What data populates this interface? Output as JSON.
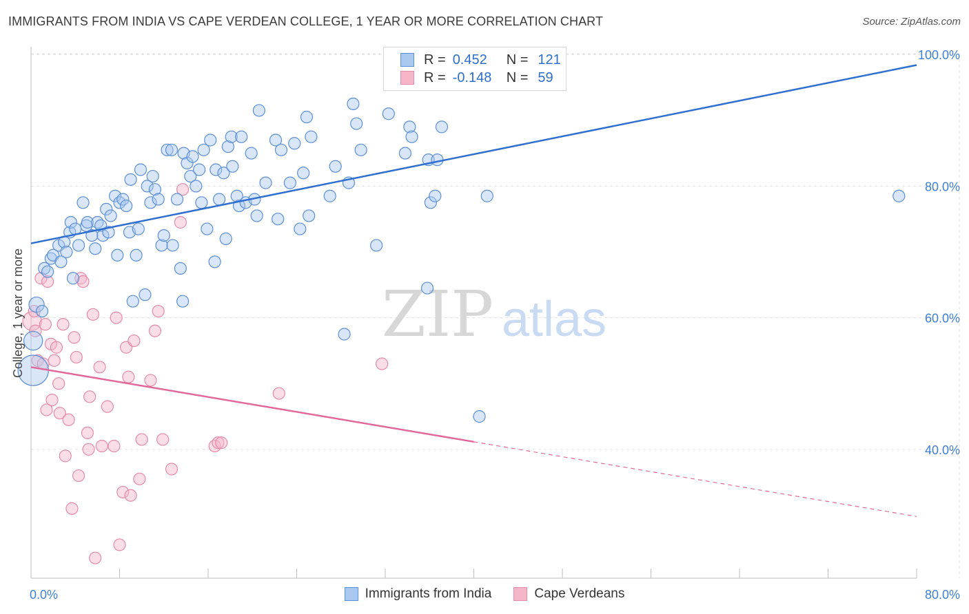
{
  "title": "IMMIGRANTS FROM INDIA VS CAPE VERDEAN COLLEGE, 1 YEAR OR MORE CORRELATION CHART",
  "source": "Source: ZipAtlas.com",
  "watermark": {
    "zip": "ZIP",
    "atlas": "atlas"
  },
  "legend": {
    "r_label": "R =",
    "n_label": "N =",
    "series": [
      {
        "name": "Immigrants from India",
        "r": "0.452",
        "n": "121",
        "fill": "#a9c8f0",
        "stroke": "#5b8fd6"
      },
      {
        "name": "Cape Verdeans",
        "r": "-0.148",
        "n": "59",
        "fill": "#f5b6c9",
        "stroke": "#e58aa8"
      }
    ]
  },
  "colors": {
    "blue_line": "#2f6fd0",
    "pink_line": "#e0689a",
    "axis_text": "#3d7fd6",
    "grid": "#e2e2e2"
  },
  "chart_data": {
    "type": "scatter",
    "title": "IMMIGRANTS FROM INDIA VS CAPE VERDEAN COLLEGE, 1 YEAR OR MORE CORRELATION CHART",
    "xlabel": "",
    "ylabel": "College, 1 year or more",
    "xlim": [
      0,
      80
    ],
    "ylim": [
      20,
      102
    ],
    "x_tick_labels": {
      "left": "0.0%",
      "right": "80.0%"
    },
    "y_ticks": [
      {
        "value": 40,
        "label": "40.0%"
      },
      {
        "value": 60,
        "label": "60.0%"
      },
      {
        "value": 80,
        "label": "80.0%"
      },
      {
        "value": 100,
        "label": "100.0%"
      }
    ],
    "series": [
      {
        "name": "Immigrants from India",
        "trend": {
          "x": [
            0,
            80
          ],
          "y": [
            71.3,
            98.4
          ],
          "dashed_from": null
        },
        "points": [
          [
            0.2,
            52,
            2.6
          ],
          [
            0.2,
            56.5,
            1.6
          ],
          [
            0.5,
            62,
            1.3
          ],
          [
            1,
            61,
            1
          ],
          [
            1.2,
            67.5,
            1
          ],
          [
            1.5,
            67,
            1
          ],
          [
            1.8,
            69,
            1
          ],
          [
            2,
            69.5,
            1
          ],
          [
            2.5,
            71,
            1
          ],
          [
            2.7,
            68.5,
            1
          ],
          [
            3,
            71.5,
            1
          ],
          [
            3.2,
            70,
            1
          ],
          [
            3.5,
            73,
            1
          ],
          [
            3.6,
            74.5,
            1
          ],
          [
            3.8,
            66,
            1
          ],
          [
            4,
            73.5,
            1
          ],
          [
            4.3,
            71,
            1
          ],
          [
            4.7,
            77.5,
            1
          ],
          [
            5,
            74,
            1
          ],
          [
            5.1,
            74.5,
            1
          ],
          [
            5.5,
            72.5,
            1
          ],
          [
            5.8,
            70.5,
            1
          ],
          [
            6,
            74.5,
            1
          ],
          [
            6.3,
            74,
            1
          ],
          [
            6.5,
            72.5,
            1
          ],
          [
            6.8,
            76.5,
            1
          ],
          [
            7,
            73,
            1
          ],
          [
            7.2,
            75.5,
            1
          ],
          [
            7.6,
            78.5,
            1
          ],
          [
            7.8,
            69.5,
            1
          ],
          [
            8,
            77.5,
            1
          ],
          [
            8.3,
            78,
            1
          ],
          [
            8.6,
            77,
            1
          ],
          [
            8.9,
            73,
            1
          ],
          [
            9,
            81,
            1
          ],
          [
            9.2,
            62.5,
            1
          ],
          [
            9.5,
            69.5,
            1
          ],
          [
            9.7,
            73.5,
            1
          ],
          [
            9.9,
            82.5,
            1
          ],
          [
            10.3,
            63.5,
            1
          ],
          [
            10.5,
            80,
            1
          ],
          [
            10.8,
            77.5,
            1
          ],
          [
            11,
            81.5,
            1
          ],
          [
            11.2,
            79.5,
            1
          ],
          [
            11.5,
            78,
            1
          ],
          [
            11.8,
            71,
            1
          ],
          [
            12,
            72.5,
            1
          ],
          [
            12.3,
            85.5,
            1
          ],
          [
            12.7,
            85.5,
            1
          ],
          [
            12.8,
            71,
            1
          ],
          [
            13.2,
            78,
            1
          ],
          [
            13.5,
            67.5,
            1
          ],
          [
            13.7,
            62.5,
            1
          ],
          [
            13.8,
            85,
            1
          ],
          [
            14.1,
            83.5,
            1
          ],
          [
            14.4,
            81.5,
            1
          ],
          [
            14.6,
            84.5,
            1
          ],
          [
            14.9,
            80,
            1
          ],
          [
            15.2,
            82.5,
            1
          ],
          [
            15.4,
            77.5,
            1
          ],
          [
            15.6,
            85.5,
            1
          ],
          [
            15.9,
            73.5,
            1
          ],
          [
            16.2,
            87,
            1
          ],
          [
            16.6,
            68.5,
            1
          ],
          [
            16.7,
            82.5,
            1
          ],
          [
            17,
            78,
            1
          ],
          [
            17.4,
            82,
            1
          ],
          [
            17.6,
            72,
            1
          ],
          [
            17.8,
            86,
            1
          ],
          [
            18.1,
            87.5,
            1
          ],
          [
            18.2,
            83,
            1
          ],
          [
            18.6,
            78.5,
            1
          ],
          [
            18.8,
            77,
            1
          ],
          [
            19,
            87.5,
            1
          ],
          [
            19.4,
            77.5,
            1
          ],
          [
            19.9,
            85,
            1
          ],
          [
            20.2,
            78,
            1
          ],
          [
            20.4,
            75.5,
            1
          ],
          [
            20.6,
            91.5,
            1
          ],
          [
            21.2,
            80.5,
            1
          ],
          [
            22.1,
            87,
            1
          ],
          [
            22.3,
            75,
            1
          ],
          [
            22.6,
            85.5,
            1
          ],
          [
            23.4,
            80.5,
            1
          ],
          [
            23.8,
            86.5,
            1
          ],
          [
            24.3,
            73.5,
            1
          ],
          [
            24.6,
            82,
            1
          ],
          [
            24.9,
            90.5,
            1
          ],
          [
            25.1,
            75.5,
            1
          ],
          [
            25.3,
            87.5,
            1
          ],
          [
            27,
            78.5,
            1
          ],
          [
            27.5,
            83,
            1
          ],
          [
            28.3,
            57.5,
            1
          ],
          [
            28.7,
            80.5,
            1
          ],
          [
            29.1,
            92.5,
            1
          ],
          [
            29.4,
            89.5,
            1
          ],
          [
            29.8,
            85.5,
            1
          ],
          [
            31.2,
            71,
            1
          ],
          [
            32.3,
            91,
            1
          ],
          [
            33.8,
            85,
            1
          ],
          [
            34.2,
            89,
            1
          ],
          [
            34.4,
            87.5,
            1
          ],
          [
            35.8,
            64.5,
            1
          ],
          [
            35.9,
            84,
            1
          ],
          [
            36.1,
            77.5,
            1
          ],
          [
            36.5,
            78.5,
            1
          ],
          [
            36.7,
            84,
            1
          ],
          [
            37.1,
            89,
            1
          ],
          [
            40.5,
            45,
            1
          ],
          [
            41.2,
            78.5,
            1
          ],
          [
            78.4,
            78.5,
            1
          ]
        ]
      },
      {
        "name": "Cape Verdeans",
        "trend": {
          "x": [
            0,
            80
          ],
          "y": [
            52.5,
            29.8
          ],
          "dashed_from": 40
        },
        "points": [
          [
            0.1,
            59.5,
            1.6
          ],
          [
            0.3,
            61,
            1
          ],
          [
            0.4,
            58,
            1
          ],
          [
            0.6,
            53.5,
            1
          ],
          [
            0.9,
            66,
            1
          ],
          [
            1.1,
            53,
            1
          ],
          [
            1.3,
            59,
            1
          ],
          [
            1.5,
            65.5,
            1
          ],
          [
            1.8,
            56,
            1
          ],
          [
            1.9,
            47.5,
            1
          ],
          [
            1.4,
            46,
            1
          ],
          [
            2.1,
            53.5,
            1
          ],
          [
            2.3,
            55.5,
            1
          ],
          [
            2.5,
            50,
            1
          ],
          [
            2.6,
            45.5,
            1
          ],
          [
            2.9,
            59,
            1
          ],
          [
            3.1,
            39,
            1
          ],
          [
            3.4,
            44.5,
            1
          ],
          [
            3.7,
            31,
            1
          ],
          [
            3.9,
            57,
            1
          ],
          [
            4.1,
            54,
            1
          ],
          [
            4.3,
            36,
            1
          ],
          [
            4.5,
            66,
            1
          ],
          [
            4.7,
            65.5,
            1
          ],
          [
            5.1,
            42.5,
            1
          ],
          [
            5.2,
            40,
            1
          ],
          [
            5.3,
            48,
            1
          ],
          [
            5.6,
            60.5,
            1
          ],
          [
            5.8,
            23.5,
            1
          ],
          [
            6.2,
            52.5,
            1
          ],
          [
            6.4,
            40.5,
            1
          ],
          [
            6.9,
            46.5,
            1
          ],
          [
            7.5,
            40.5,
            1
          ],
          [
            7.7,
            60,
            1
          ],
          [
            8,
            25.5,
            1
          ],
          [
            8.3,
            33.5,
            1
          ],
          [
            8.6,
            55.5,
            1
          ],
          [
            8.8,
            51,
            1
          ],
          [
            9,
            33,
            1
          ],
          [
            9.3,
            56.5,
            1
          ],
          [
            9.8,
            35.5,
            1
          ],
          [
            10,
            41.5,
            1
          ],
          [
            10.8,
            50.5,
            1
          ],
          [
            11.2,
            58,
            1
          ],
          [
            11.5,
            61,
            1
          ],
          [
            11.9,
            41.5,
            1
          ],
          [
            12.7,
            37,
            1
          ],
          [
            13.5,
            74.5,
            1
          ],
          [
            13.7,
            79.5,
            1
          ],
          [
            16.6,
            40.5,
            1
          ],
          [
            16.9,
            41,
            1
          ],
          [
            17.2,
            41,
            1
          ],
          [
            22.4,
            48.5,
            1
          ],
          [
            31.7,
            53,
            1
          ]
        ]
      }
    ]
  }
}
